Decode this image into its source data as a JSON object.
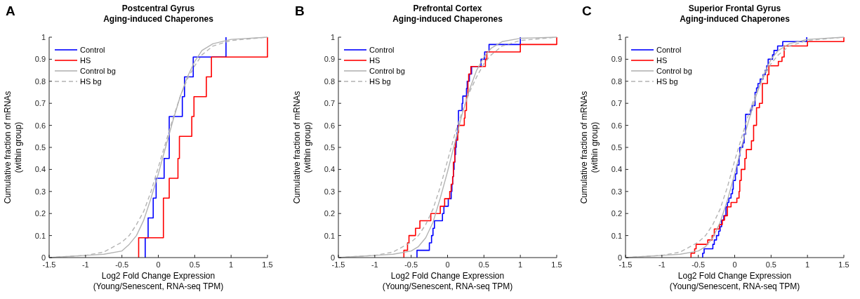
{
  "chart_data": [
    {
      "type": "step",
      "title": "Postcentral Gyrus",
      "subtitle": "Aging-induced Chaperones",
      "annotations": [
        "A"
      ],
      "xlabel": "Log2 Fold Change Expression\n(Young/Senescent, RNA-seq TPM)",
      "ylabel": "Cumulative fraction of mRNAs\n(within group)",
      "xlim": [
        -1.5,
        1.5
      ],
      "ylim": [
        0,
        1
      ],
      "xticks": [
        -1.5,
        -1,
        -0.5,
        0,
        0.5,
        1,
        1.5
      ],
      "yticks": [
        0,
        0.1,
        0.2,
        0.3,
        0.4,
        0.5,
        0.6,
        0.7,
        0.8,
        0.9,
        1
      ],
      "legend": "top left",
      "grid": false,
      "series": [
        {
          "name": "Control",
          "color": "#0000ff",
          "x": [
            -0.18,
            -0.18,
            -0.14,
            -0.07,
            -0.03,
            0.08,
            0.15,
            0.33,
            0.36,
            0.48,
            0.93
          ],
          "values": [
            0,
            0.09,
            0.18,
            0.27,
            0.36,
            0.45,
            0.64,
            0.73,
            0.82,
            0.91,
            1
          ]
        },
        {
          "name": "HS",
          "color": "#ff0000",
          "x": [
            -0.27,
            -0.27,
            0.07,
            0.15,
            0.27,
            0.29,
            0.46,
            0.49,
            0.66,
            0.73,
            1.5
          ],
          "values": [
            0,
            0.09,
            0.27,
            0.36,
            0.45,
            0.55,
            0.64,
            0.73,
            0.82,
            0.91,
            1
          ]
        },
        {
          "name": "Control bg",
          "type": "line",
          "color": "#b3b3b3",
          "line_style": "solid",
          "x": [
            -1.5,
            -1,
            -0.75,
            -0.5,
            -0.4,
            -0.3,
            -0.2,
            -0.1,
            0,
            0.1,
            0.2,
            0.3,
            0.4,
            0.5,
            0.6,
            0.75,
            1,
            1.5
          ],
          "values": [
            0,
            0.01,
            0.015,
            0.03,
            0.06,
            0.1,
            0.17,
            0.27,
            0.38,
            0.5,
            0.62,
            0.73,
            0.82,
            0.89,
            0.94,
            0.97,
            0.99,
            1
          ]
        },
        {
          "name": "HS bg",
          "type": "line",
          "color": "#b3b3b3",
          "line_style": "dashed",
          "x": [
            -1.5,
            -1,
            -0.75,
            -0.5,
            -0.4,
            -0.3,
            -0.2,
            -0.1,
            0,
            0.1,
            0.2,
            0.3,
            0.4,
            0.5,
            0.6,
            0.75,
            1,
            1.5
          ],
          "values": [
            0,
            0.01,
            0.025,
            0.07,
            0.1,
            0.15,
            0.21,
            0.3,
            0.41,
            0.52,
            0.63,
            0.73,
            0.81,
            0.87,
            0.92,
            0.96,
            0.985,
            1
          ]
        }
      ]
    },
    {
      "type": "step",
      "title": "Prefrontal Cortex",
      "subtitle": "Aging-induced Chaperones",
      "annotations": [
        "B"
      ],
      "xlabel": "Log2 Fold Change Expression\n(Young/Senescent, RNA-seq TPM)",
      "ylabel": "Cumulative fraction of mRNAs\n(within group)",
      "xlim": [
        -1.5,
        1.5
      ],
      "ylim": [
        0,
        1
      ],
      "xticks": [
        -1.5,
        -1,
        -0.5,
        0,
        0.5,
        1,
        1.5
      ],
      "yticks": [
        0,
        0.1,
        0.2,
        0.3,
        0.4,
        0.5,
        0.6,
        0.7,
        0.8,
        0.9,
        1
      ],
      "legend": "top left",
      "grid": false,
      "series": [
        {
          "name": "Control",
          "color": "#0000ff",
          "x": [
            -0.42,
            -0.42,
            -0.25,
            -0.22,
            -0.2,
            -0.18,
            -0.07,
            -0.05,
            0.01,
            0.05,
            0.06,
            0.07,
            0.08,
            0.09,
            0.1,
            0.11,
            0.12,
            0.13,
            0.14,
            0.15,
            0.2,
            0.21,
            0.26,
            0.27,
            0.3,
            0.33,
            0.46,
            0.51,
            0.57,
            1.0
          ],
          "values": [
            0,
            0.033,
            0.067,
            0.1,
            0.133,
            0.167,
            0.2,
            0.233,
            0.267,
            0.3,
            0.333,
            0.367,
            0.4,
            0.433,
            0.467,
            0.5,
            0.533,
            0.567,
            0.6,
            0.667,
            0.7,
            0.733,
            0.767,
            0.8,
            0.833,
            0.867,
            0.9,
            0.933,
            0.967,
            1
          ]
        },
        {
          "name": "HS",
          "color": "#ff0000",
          "x": [
            -0.6,
            -0.6,
            -0.55,
            -0.53,
            -0.44,
            -0.38,
            -0.23,
            -0.1,
            -0.04,
            0.03,
            0.05,
            0.07,
            0.08,
            0.1,
            0.11,
            0.14,
            0.15,
            0.23,
            0.24,
            0.26,
            0.28,
            0.29,
            0.32,
            0.52,
            0.54,
            1.0,
            1.5
          ],
          "values": [
            0,
            0.033,
            0.067,
            0.1,
            0.133,
            0.167,
            0.2,
            0.233,
            0.267,
            0.3,
            0.333,
            0.367,
            0.433,
            0.5,
            0.533,
            0.567,
            0.6,
            0.633,
            0.667,
            0.733,
            0.8,
            0.833,
            0.867,
            0.9,
            0.933,
            0.967,
            1
          ]
        },
        {
          "name": "Control bg",
          "type": "line",
          "color": "#b3b3b3",
          "line_style": "solid",
          "x": [
            -1.5,
            -1,
            -0.75,
            -0.5,
            -0.4,
            -0.3,
            -0.2,
            -0.1,
            0,
            0.1,
            0.2,
            0.3,
            0.4,
            0.5,
            0.6,
            0.75,
            1,
            1.5
          ],
          "values": [
            0,
            0.01,
            0.015,
            0.03,
            0.05,
            0.09,
            0.16,
            0.27,
            0.39,
            0.52,
            0.65,
            0.76,
            0.85,
            0.91,
            0.95,
            0.98,
            0.995,
            1
          ]
        },
        {
          "name": "HS bg",
          "type": "line",
          "color": "#b3b3b3",
          "line_style": "dashed",
          "x": [
            -1.5,
            -1,
            -0.75,
            -0.5,
            -0.4,
            -0.3,
            -0.2,
            -0.1,
            0,
            0.1,
            0.2,
            0.3,
            0.4,
            0.5,
            0.6,
            0.75,
            1,
            1.5
          ],
          "values": [
            0,
            0.01,
            0.025,
            0.07,
            0.1,
            0.15,
            0.22,
            0.32,
            0.44,
            0.56,
            0.66,
            0.75,
            0.82,
            0.88,
            0.92,
            0.96,
            0.985,
            1
          ]
        }
      ]
    },
    {
      "type": "step",
      "title": "Superior Frontal Gyrus",
      "subtitle": "Aging-induced Chaperones",
      "annotations": [
        "C"
      ],
      "xlabel": "Log2 Fold Change Expression\n(Young/Senescent, RNA-seq TPM)",
      "ylabel": "Cumulative fraction of mRNAs\n(within group)",
      "xlim": [
        -1.5,
        1.5
      ],
      "ylim": [
        0,
        1
      ],
      "xticks": [
        -1.5,
        -1,
        -0.5,
        0,
        0.5,
        1,
        1.5
      ],
      "yticks": [
        0,
        0.1,
        0.2,
        0.3,
        0.4,
        0.5,
        0.6,
        0.7,
        0.8,
        0.9,
        1
      ],
      "legend": "top left",
      "grid": false,
      "series": [
        {
          "name": "Control",
          "color": "#0000ff",
          "x": [
            -0.44,
            -0.44,
            -0.42,
            -0.3,
            -0.28,
            -0.25,
            -0.22,
            -0.2,
            -0.18,
            -0.15,
            -0.12,
            -0.1,
            -0.08,
            -0.05,
            -0.03,
            -0.02,
            0.01,
            0.03,
            0.06,
            0.07,
            0.11,
            0.13,
            0.15,
            0.22,
            0.24,
            0.28,
            0.3,
            0.32,
            0.35,
            0.39,
            0.42,
            0.44,
            0.46,
            0.52,
            0.54,
            0.59,
            0.66,
            0.99
          ],
          "values": [
            0,
            0.02,
            0.04,
            0.06,
            0.08,
            0.1,
            0.12,
            0.14,
            0.17,
            0.19,
            0.23,
            0.25,
            0.27,
            0.29,
            0.31,
            0.35,
            0.38,
            0.42,
            0.46,
            0.5,
            0.52,
            0.56,
            0.65,
            0.67,
            0.69,
            0.75,
            0.77,
            0.79,
            0.81,
            0.83,
            0.85,
            0.87,
            0.9,
            0.92,
            0.94,
            0.96,
            0.98,
            1
          ]
        },
        {
          "name": "HS",
          "color": "#ff0000",
          "x": [
            -0.6,
            -0.6,
            -0.55,
            -0.53,
            -0.37,
            -0.31,
            -0.28,
            -0.21,
            -0.17,
            -0.14,
            -0.1,
            -0.05,
            0.03,
            0.06,
            0.07,
            0.09,
            0.14,
            0.16,
            0.23,
            0.26,
            0.3,
            0.34,
            0.38,
            0.45,
            0.47,
            0.6,
            0.65,
            0.68,
            1.0,
            1.5
          ],
          "values": [
            0,
            0.02,
            0.04,
            0.06,
            0.08,
            0.1,
            0.13,
            0.15,
            0.17,
            0.19,
            0.23,
            0.25,
            0.27,
            0.3,
            0.35,
            0.4,
            0.45,
            0.49,
            0.53,
            0.6,
            0.68,
            0.7,
            0.79,
            0.83,
            0.87,
            0.89,
            0.91,
            0.96,
            0.98,
            1
          ]
        },
        {
          "name": "Control bg",
          "type": "line",
          "color": "#b3b3b3",
          "line_style": "solid",
          "x": [
            -1.5,
            -1,
            -0.75,
            -0.5,
            -0.4,
            -0.3,
            -0.2,
            -0.1,
            0,
            0.1,
            0.2,
            0.3,
            0.4,
            0.5,
            0.6,
            0.75,
            1,
            1.5
          ],
          "values": [
            0,
            0.01,
            0.015,
            0.03,
            0.05,
            0.09,
            0.16,
            0.26,
            0.38,
            0.51,
            0.63,
            0.74,
            0.83,
            0.9,
            0.94,
            0.97,
            0.99,
            1
          ]
        },
        {
          "name": "HS bg",
          "type": "line",
          "color": "#b3b3b3",
          "line_style": "dashed",
          "x": [
            -1.5,
            -1,
            -0.75,
            -0.5,
            -0.4,
            -0.3,
            -0.2,
            -0.1,
            0,
            0.1,
            0.2,
            0.3,
            0.4,
            0.5,
            0.6,
            0.75,
            1,
            1.5
          ],
          "values": [
            0,
            0.01,
            0.025,
            0.07,
            0.1,
            0.15,
            0.22,
            0.32,
            0.44,
            0.55,
            0.66,
            0.75,
            0.82,
            0.88,
            0.92,
            0.96,
            0.985,
            1
          ]
        }
      ]
    }
  ]
}
